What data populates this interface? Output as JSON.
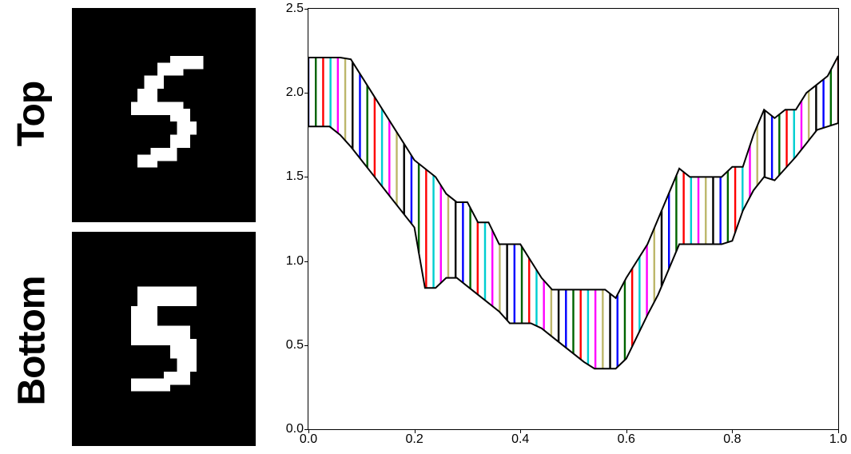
{
  "labels": {
    "top": "Top",
    "bottom": "Bottom"
  },
  "digit_images": {
    "top": {
      "bg": "#000000",
      "fg": "#ffffff",
      "digit": "5"
    },
    "bottom": {
      "bg": "#000000",
      "fg": "#ffffff",
      "digit": "5"
    }
  },
  "chart": {
    "type": "filled-band",
    "background_color": "#ffffff",
    "border_color": "#000000",
    "xlim": [
      0.0,
      1.0
    ],
    "ylim": [
      0.0,
      2.5
    ],
    "xticks": [
      0.0,
      0.2,
      0.4,
      0.6,
      0.8,
      1.0
    ],
    "yticks": [
      0.0,
      0.5,
      1.0,
      1.5,
      2.0,
      2.5
    ],
    "xtick_labels": [
      "0.0",
      "0.2",
      "0.4",
      "0.6",
      "0.8",
      "1.0"
    ],
    "ytick_labels": [
      "0.0",
      "0.5",
      "1.0",
      "1.5",
      "2.0",
      "2.5"
    ],
    "tick_fontsize": 16,
    "band_line_color": "#000000",
    "band_line_width": 2,
    "stripe_colors": [
      "#0000ff",
      "#006400",
      "#ff0000",
      "#00ced1",
      "#ff00ff",
      "#bdb76b",
      "#000000",
      "#0000ff",
      "#006400",
      "#ff0000",
      "#00ced1",
      "#ff00ff",
      "#bdb76b",
      "#000000"
    ],
    "stripe_width": 1.6,
    "n_stripes": 72,
    "x": [
      0.0,
      0.02,
      0.04,
      0.06,
      0.08,
      0.1,
      0.12,
      0.14,
      0.16,
      0.18,
      0.2,
      0.22,
      0.24,
      0.26,
      0.28,
      0.3,
      0.32,
      0.34,
      0.36,
      0.38,
      0.4,
      0.42,
      0.44,
      0.46,
      0.48,
      0.5,
      0.52,
      0.54,
      0.56,
      0.58,
      0.6,
      0.62,
      0.64,
      0.66,
      0.68,
      0.7,
      0.72,
      0.74,
      0.76,
      0.78,
      0.8,
      0.82,
      0.84,
      0.86,
      0.88,
      0.9,
      0.92,
      0.94,
      0.96,
      0.98,
      1.0
    ],
    "upper": [
      2.21,
      2.21,
      2.21,
      2.21,
      2.2,
      2.1,
      2.0,
      1.9,
      1.8,
      1.7,
      1.6,
      1.55,
      1.5,
      1.4,
      1.35,
      1.35,
      1.23,
      1.23,
      1.1,
      1.1,
      1.1,
      1.0,
      0.9,
      0.83,
      0.83,
      0.83,
      0.83,
      0.83,
      0.83,
      0.78,
      0.9,
      1.0,
      1.1,
      1.25,
      1.4,
      1.55,
      1.5,
      1.5,
      1.5,
      1.5,
      1.56,
      1.56,
      1.75,
      1.9,
      1.85,
      1.9,
      1.9,
      2.0,
      2.05,
      2.1,
      2.22
    ],
    "lower": [
      1.8,
      1.8,
      1.8,
      1.75,
      1.68,
      1.6,
      1.52,
      1.44,
      1.36,
      1.28,
      1.2,
      0.84,
      0.84,
      0.9,
      0.9,
      0.85,
      0.8,
      0.75,
      0.7,
      0.63,
      0.63,
      0.63,
      0.6,
      0.55,
      0.5,
      0.45,
      0.4,
      0.36,
      0.36,
      0.36,
      0.42,
      0.55,
      0.68,
      0.8,
      0.95,
      1.1,
      1.1,
      1.1,
      1.1,
      1.1,
      1.12,
      1.3,
      1.42,
      1.5,
      1.48,
      1.55,
      1.62,
      1.7,
      1.78,
      1.8,
      1.82
    ]
  }
}
